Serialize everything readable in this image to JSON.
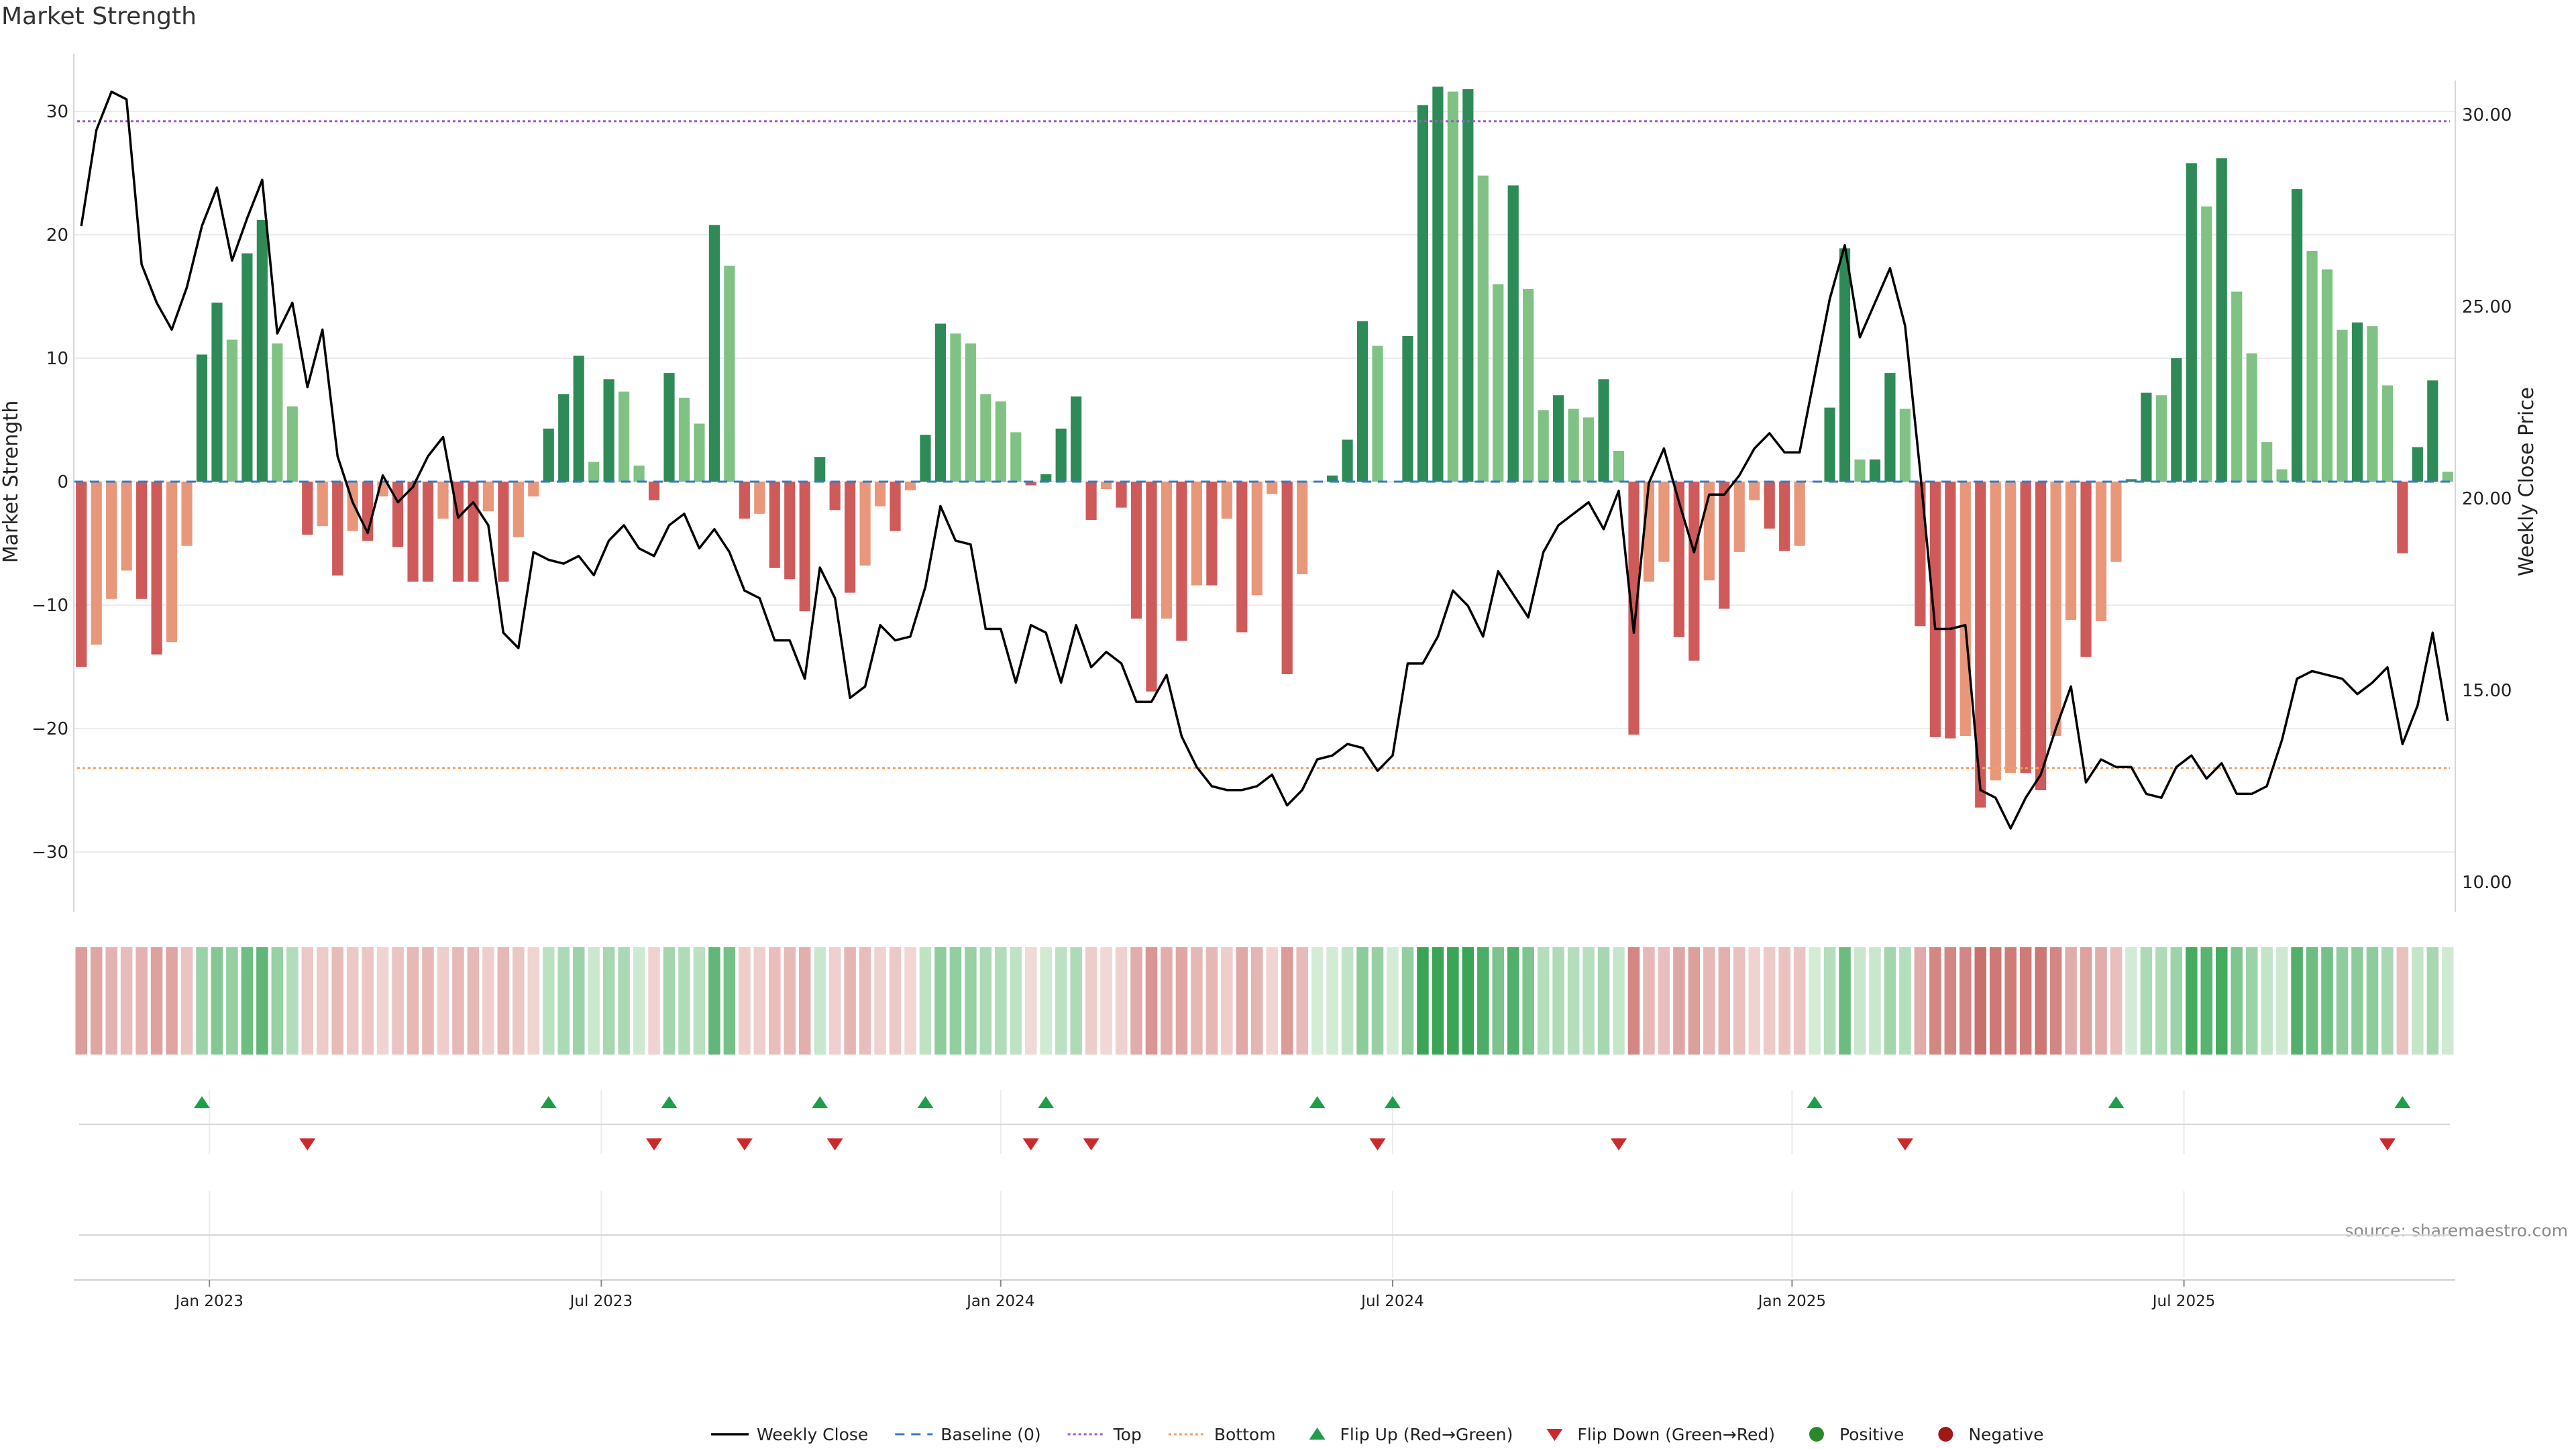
{
  "chart_data": {
    "type": "bar",
    "title": "Market Strength",
    "ylabel": "Market Strength",
    "y2label": "Weekly Close Price",
    "ylim": [
      -35,
      35
    ],
    "y2lim": [
      9.3,
      31.8
    ],
    "yticks": [
      30,
      20,
      10,
      0,
      -10,
      -20,
      -30
    ],
    "ytick_labels": [
      "30",
      "20",
      "10",
      "0",
      "−10",
      "−20",
      "−30"
    ],
    "y2ticks": [
      30,
      25,
      20,
      15,
      10
    ],
    "y2tick_labels": [
      "30.00",
      "25.00",
      "20.00",
      "15.00",
      "10.00"
    ],
    "xticks": [
      9,
      35,
      61.5,
      87.5,
      114,
      140
    ],
    "xtick_labels": [
      "Jan 2023",
      "Jul 2023",
      "Jan 2024",
      "Jul 2024",
      "Jan 2025",
      "Jul 2025"
    ],
    "top_level": 29.2,
    "bottom_level": -23.2,
    "strength": [
      -15,
      -13.2,
      -9.5,
      -7.2,
      -9.5,
      -14,
      -13,
      -5.2,
      10.3,
      14.5,
      11.5,
      18.5,
      21.2,
      11.2,
      6.1,
      -4.3,
      -3.6,
      -7.6,
      -4,
      -4.8,
      -1.2,
      -5.3,
      -8.1,
      -8.1,
      -3,
      -8.1,
      -8.1,
      -2.4,
      -8.1,
      -4.5,
      -1.2,
      4.3,
      7.1,
      10.2,
      1.6,
      8.3,
      7.3,
      1.3,
      -1.5,
      8.8,
      6.8,
      4.7,
      20.8,
      17.5,
      -3,
      -2.6,
      -7,
      -7.9,
      -10.5,
      2,
      -2.3,
      -9,
      -6.8,
      -2,
      -4,
      -0.7,
      3.8,
      12.8,
      12,
      11.2,
      7.1,
      6.5,
      4,
      -0.3,
      0.6,
      4.3,
      6.9,
      -3.1,
      -0.6,
      -2.1,
      -11.1,
      -17,
      -11.1,
      -12.9,
      -8.4,
      -8.4,
      -3,
      -12.2,
      -9.2,
      -1,
      -15.6,
      -7.5,
      0,
      0.5,
      3.4,
      13,
      11,
      0,
      11.8,
      30.5,
      32,
      31.6,
      31.8,
      24.8,
      16,
      24,
      15.6,
      5.8,
      7,
      5.9,
      5.2,
      8.3,
      2.5,
      -20.5,
      -8.1,
      -6.5,
      -12.6,
      -14.5,
      -8,
      -10.3,
      -5.7,
      -1.5,
      -3.8,
      -5.6,
      -5.2,
      0,
      6,
      18.9,
      1.8,
      1.8,
      8.8,
      5.9,
      -11.7,
      -20.7,
      -20.8,
      -20.6,
      -26.4,
      -24.2,
      -23.6,
      -23.6,
      -25,
      -20.6,
      -11.2,
      -14.2,
      -11.3,
      -6.5,
      0.2,
      7.2,
      7,
      10,
      25.8,
      22.3,
      26.2,
      15.4,
      10.4,
      3.2,
      1,
      23.7,
      18.7,
      17.2,
      12.3,
      12.9,
      12.6,
      7.8,
      -5.8,
      2.8,
      8.2,
      0.8
    ],
    "close": [
      27.1,
      29.6,
      30.6,
      30.4,
      26.1,
      25.1,
      24.4,
      25.5,
      27.1,
      28.1,
      26.2,
      27.3,
      28.3,
      24.3,
      25.1,
      22.9,
      24.4,
      21.1,
      19.9,
      19.1,
      20.6,
      19.9,
      20.3,
      21.1,
      21.6,
      19.5,
      19.9,
      19.3,
      16.5,
      16.1,
      18.6,
      18.4,
      18.3,
      18.5,
      18,
      18.9,
      19.3,
      18.7,
      18.5,
      19.3,
      19.6,
      18.7,
      19.2,
      18.6,
      17.6,
      17.4,
      16.3,
      16.3,
      15.3,
      18.2,
      17.4,
      14.8,
      15.1,
      16.7,
      16.3,
      16.4,
      17.7,
      19.8,
      18.9,
      18.8,
      16.6,
      16.6,
      15.2,
      16.7,
      16.5,
      15.2,
      16.7,
      15.6,
      16,
      15.7,
      14.7,
      14.7,
      15.4,
      13.8,
      13,
      12.5,
      12.4,
      12.4,
      12.5,
      12.8,
      12,
      12.4,
      13.2,
      13.3,
      13.6,
      13.5,
      12.9,
      13.3,
      15.7,
      15.7,
      16.4,
      17.6,
      17.2,
      16.4,
      18.1,
      17.5,
      16.9,
      18.6,
      19.3,
      19.6,
      19.9,
      19.2,
      20.2,
      16.5,
      20.4,
      21.3,
      19.9,
      18.6,
      20.1,
      20.1,
      20.6,
      21.3,
      21.7,
      21.2,
      21.2,
      23.2,
      25.2,
      26.6,
      24.2,
      25.1,
      26,
      24.5,
      20.7,
      16.6,
      16.6,
      16.7,
      12.4,
      12.2,
      11.4,
      12.2,
      12.8,
      14,
      15.1,
      12.6,
      13.2,
      13,
      13,
      12.3,
      12.2,
      13,
      13.3,
      12.7,
      13.1,
      12.3,
      12.3,
      12.5,
      13.7,
      15.3,
      15.5,
      15.4,
      15.3,
      14.9,
      15.2,
      15.6,
      13.6,
      14.6,
      16.5,
      14.2
    ],
    "heat_strip": "one cell per week, colour follows Market Strength sign and size",
    "flip_up_weeks": [
      8,
      31,
      39,
      49,
      56,
      64,
      82,
      87,
      115,
      135,
      154
    ],
    "flip_down_weeks": [
      15,
      38,
      44,
      50,
      63,
      67,
      86,
      102,
      121,
      153
    ],
    "source": "source: sharemaestro.com",
    "legend_position": "bottom-center",
    "legend": [
      {
        "label": "Weekly Close",
        "kind": "line",
        "color": "#000000"
      },
      {
        "label": "Baseline (0)",
        "kind": "dash",
        "color": "#3a78c0"
      },
      {
        "label": "Top",
        "kind": "dot",
        "color": "#9b59d0"
      },
      {
        "label": "Bottom",
        "kind": "dot",
        "color": "#f0a060"
      },
      {
        "label": "Flip Up (Red→Green)",
        "kind": "tri-up",
        "color": "#1f9e4a"
      },
      {
        "label": "Flip Down (Green→Red)",
        "kind": "tri-down",
        "color": "#cc2a2a"
      },
      {
        "label": "Positive",
        "kind": "dot-marker",
        "color": "#2a8a2a"
      },
      {
        "label": "Negative",
        "kind": "dot-marker",
        "color": "#a01818"
      }
    ]
  },
  "colors": {
    "pos_strong": "#2e8b57",
    "pos_weak": "#7fc283",
    "neg_strong": "#cf5a5a",
    "neg_weak": "#e8977a",
    "line": "#000000",
    "grid": "#ececec",
    "top": "#9b59d0",
    "bottom": "#f0a060",
    "baseline": "#3a78c0"
  }
}
